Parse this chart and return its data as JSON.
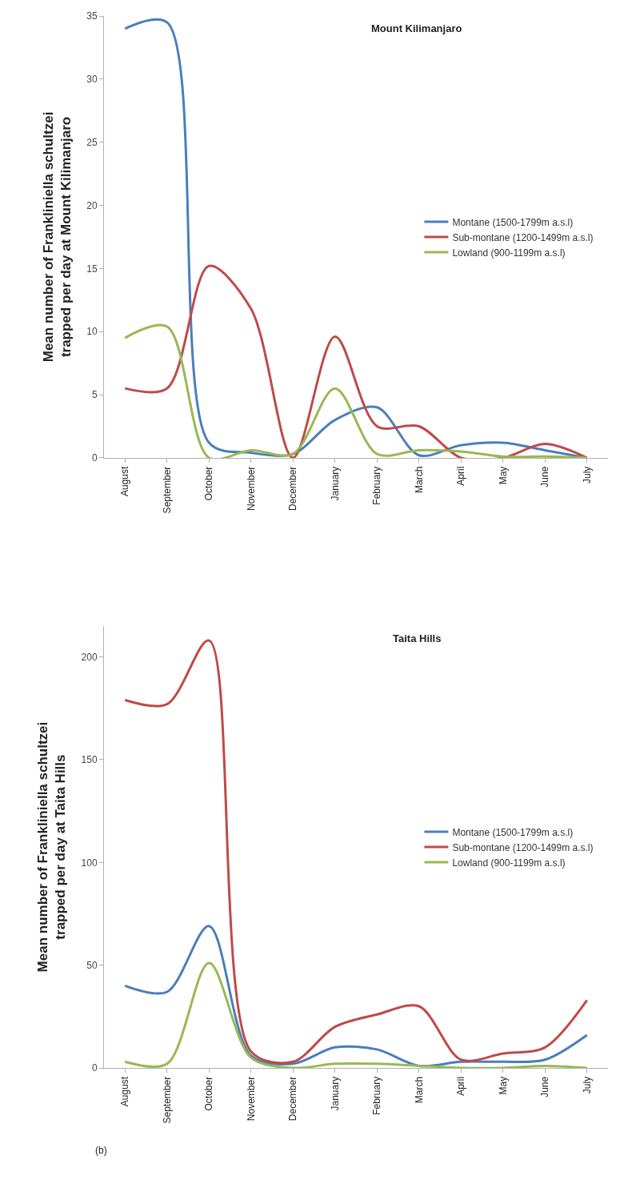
{
  "chart_data": [
    {
      "type": "line",
      "title": "Mount Kilimanjaro",
      "ylabel": "Mean number of Frankliniella schultzei\ntrapped per day at Mount Kilimanjaro",
      "categories": [
        "August",
        "September",
        "October",
        "November",
        "December",
        "January",
        "February",
        "March",
        "April",
        "May",
        "June",
        "July"
      ],
      "series": [
        {
          "name": "Montane (1500-1799m a.s.l)",
          "color": "#4a7ebb",
          "values": [
            34,
            34.5,
            1.2,
            0.4,
            0.3,
            3,
            4,
            0.2,
            1,
            1.2,
            0.6,
            0
          ]
        },
        {
          "name": "Sub-montane (1200-1499m a.s.l)",
          "color": "#be4b48",
          "values": [
            5.5,
            5.5,
            15.2,
            11.8,
            0,
            9.6,
            2.5,
            2.5,
            0,
            0,
            1.1,
            0
          ]
        },
        {
          "name": "Lowland (900-1199m a.s.l)",
          "color": "#98b954",
          "values": [
            9.5,
            10.4,
            0,
            0.6,
            0.3,
            5.5,
            0.3,
            0.6,
            0.5,
            0.1,
            0.1,
            0
          ]
        }
      ],
      "ylim": [
        0,
        35
      ],
      "yticks": [
        0,
        5,
        10,
        15,
        20,
        25,
        30,
        35
      ],
      "grid": false,
      "legend": "right",
      "marker": "none",
      "line_style": "solid"
    },
    {
      "type": "line",
      "title": "Taita Hills",
      "ylabel": "Mean number of Frankliniella schultzei\ntrapped per day at Taita Hills",
      "categories": [
        "August",
        "September",
        "October",
        "November",
        "December",
        "January",
        "February",
        "March",
        "April",
        "May",
        "June",
        "July"
      ],
      "series": [
        {
          "name": "Montane (1500-1799m a.s.l)",
          "color": "#4a7ebb",
          "values": [
            40,
            37,
            69,
            6,
            2,
            10,
            9,
            1,
            3,
            3,
            4,
            16
          ]
        },
        {
          "name": "Sub-montane (1200-1499m a.s.l)",
          "color": "#be4b48",
          "values": [
            179,
            177,
            208,
            8,
            3,
            20,
            26,
            30,
            4,
            7,
            10,
            33
          ]
        },
        {
          "name": "Lowland (900-1199m a.s.l)",
          "color": "#98b954",
          "values": [
            3,
            2,
            51,
            5,
            0,
            2,
            2,
            1,
            0,
            0,
            1,
            0
          ]
        }
      ],
      "ylim": [
        0,
        215
      ],
      "yticks": [
        0,
        50,
        100,
        150,
        200
      ],
      "grid": false,
      "legend": "right",
      "marker": "none",
      "line_style": "solid",
      "annotations": [
        "(b)"
      ]
    }
  ]
}
